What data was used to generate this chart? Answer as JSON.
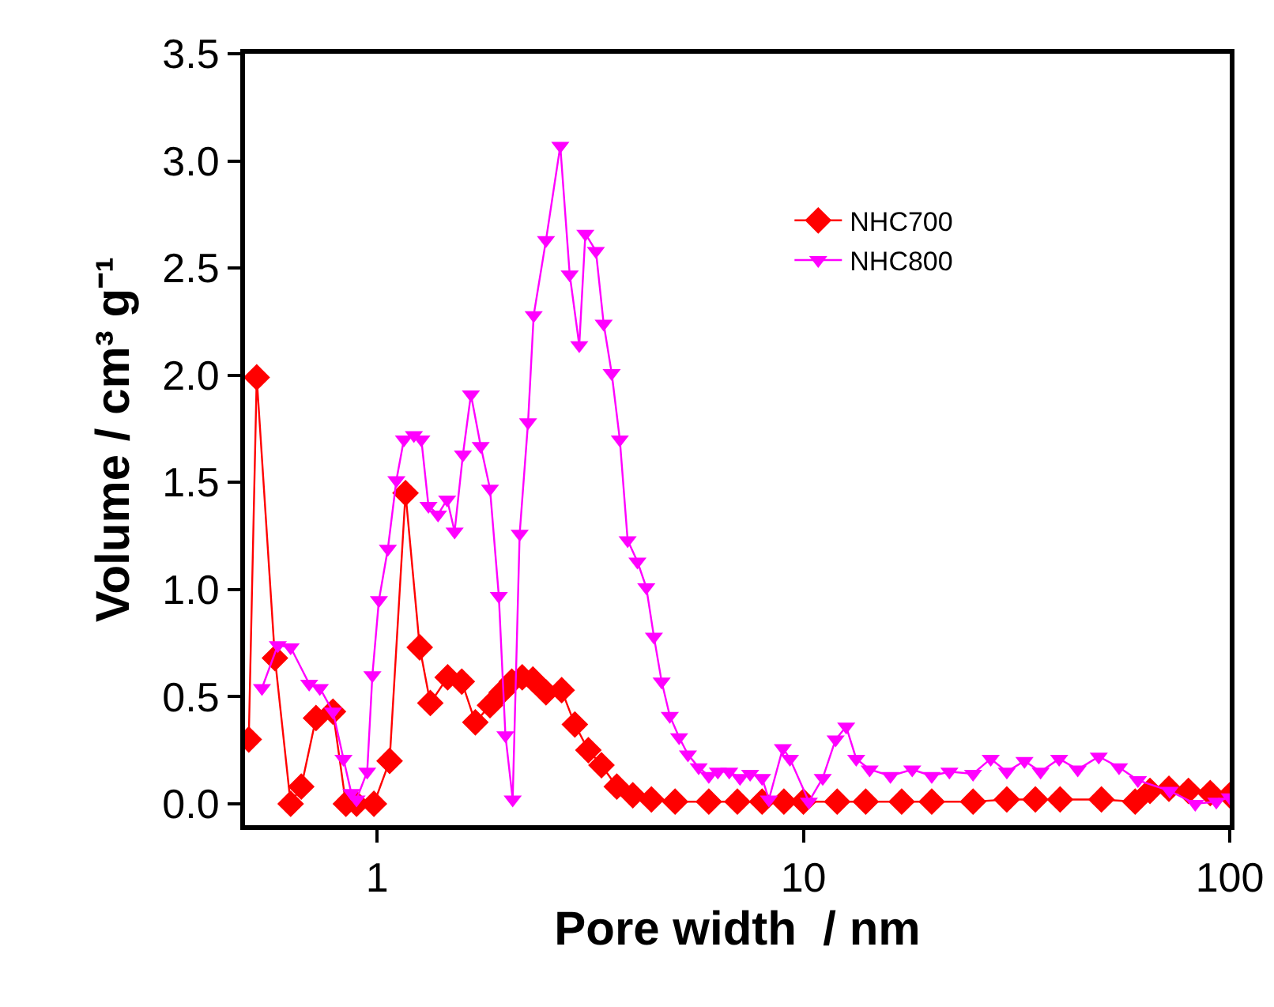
{
  "chart_data": {
    "type": "line",
    "xlabel": "Pore width  / nm",
    "ylabel": "Volume / cm³ g⁻¹",
    "log": "x",
    "xlim": [
      0.49,
      100
    ],
    "xticks": [
      1,
      10,
      100
    ],
    "ylim": [
      -0.1,
      3.5
    ],
    "yticks": [
      {
        "value": 0,
        "label": "0.0"
      },
      {
        "value": 0.5,
        "label": "0.5"
      },
      {
        "value": 1,
        "label": "1.0"
      },
      {
        "value": 1.5,
        "label": "1.5"
      },
      {
        "value": 2,
        "label": "2.0"
      },
      {
        "value": 2.5,
        "label": "2.5"
      },
      {
        "value": 3,
        "label": "3.0"
      },
      {
        "value": 3.5,
        "label": "3.5"
      }
    ],
    "legend": "top right",
    "series": [
      {
        "name": "NHC700",
        "color": "#ff0000",
        "marker": "diamond",
        "x": [
          0.5,
          0.522,
          0.576,
          0.627,
          0.664,
          0.719,
          0.788,
          0.845,
          0.895,
          0.983,
          1.07,
          1.166,
          1.259,
          1.333,
          1.464,
          1.58,
          1.7,
          1.84,
          1.96,
          2.07,
          2.19,
          2.32,
          2.49,
          2.71,
          2.91,
          3.13,
          3.36,
          3.65,
          3.98,
          4.4,
          5,
          6,
          7,
          8,
          9,
          10,
          12,
          14,
          17,
          20,
          25,
          30,
          35,
          40,
          50,
          60,
          65,
          72,
          80,
          90,
          100
        ],
        "values": [
          0.3,
          1.99,
          0.68,
          0,
          0.08,
          0.4,
          0.43,
          0,
          0,
          0,
          0.2,
          1.45,
          0.73,
          0.47,
          0.59,
          0.57,
          0.38,
          0.46,
          0.52,
          0.57,
          0.59,
          0.58,
          0.52,
          0.53,
          0.37,
          0.25,
          0.18,
          0.08,
          0.04,
          0.02,
          0.01,
          0.01,
          0.01,
          0.01,
          0.01,
          0.01,
          0.01,
          0.01,
          0.01,
          0.01,
          0.01,
          0.02,
          0.02,
          0.02,
          0.02,
          0.01,
          0.06,
          0.07,
          0.06,
          0.05,
          0.04
        ]
      },
      {
        "name": "NHC800",
        "color": "#ff00ff",
        "marker": "triangle",
        "x": [
          0.537,
          0.585,
          0.627,
          0.693,
          0.734,
          0.788,
          0.834,
          0.87,
          0.895,
          0.948,
          0.975,
          1.01,
          1.06,
          1.11,
          1.156,
          1.22,
          1.27,
          1.32,
          1.39,
          1.46,
          1.52,
          1.59,
          1.66,
          1.75,
          1.84,
          1.93,
          2.0,
          2.08,
          2.16,
          2.26,
          2.33,
          2.49,
          2.69,
          2.83,
          2.98,
          3.08,
          3.26,
          3.4,
          3.55,
          3.71,
          3.87,
          4.08,
          4.28,
          4.46,
          4.65,
          4.86,
          5.11,
          5.36,
          5.68,
          6.0,
          6.3,
          6.7,
          7.1,
          7.5,
          8.0,
          8.3,
          8.95,
          9.3,
          10.3,
          11.1,
          11.9,
          12.6,
          13.3,
          14.3,
          16,
          18,
          20,
          22,
          25,
          27.5,
          30,
          33,
          36,
          39.8,
          44,
          49.3,
          55,
          60.9,
          72.3,
          83,
          93,
          100
        ],
        "values": [
          0.54,
          0.74,
          0.73,
          0.56,
          0.54,
          0.43,
          0.21,
          0.05,
          0.02,
          0.15,
          0.6,
          0.95,
          1.19,
          1.51,
          1.7,
          1.72,
          1.7,
          1.39,
          1.35,
          1.42,
          1.27,
          1.63,
          1.91,
          1.67,
          1.47,
          0.97,
          0.32,
          0.02,
          1.26,
          1.78,
          2.28,
          2.63,
          3.07,
          2.47,
          2.14,
          2.66,
          2.58,
          2.24,
          2.01,
          1.7,
          1.23,
          1.13,
          1.01,
          0.78,
          0.57,
          0.41,
          0.31,
          0.23,
          0.17,
          0.13,
          0.15,
          0.15,
          0.12,
          0.14,
          0.12,
          0.02,
          0.26,
          0.21,
          0.01,
          0.12,
          0.3,
          0.36,
          0.21,
          0.16,
          0.13,
          0.16,
          0.13,
          0.15,
          0.14,
          0.21,
          0.15,
          0.2,
          0.15,
          0.21,
          0.16,
          0.22,
          0.17,
          0.11,
          0.06,
          0.0,
          0.01,
          0.03
        ]
      }
    ]
  }
}
